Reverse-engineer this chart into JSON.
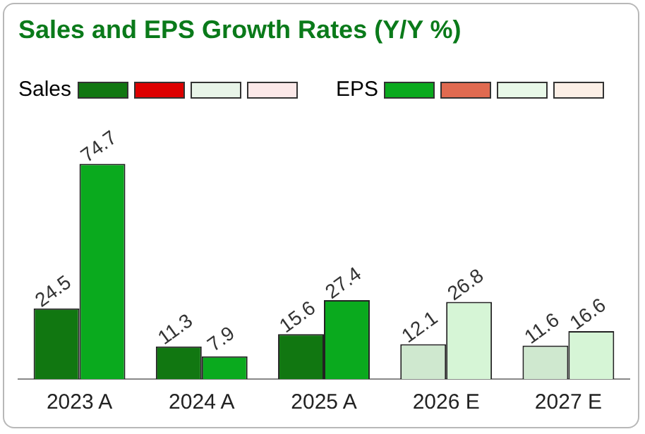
{
  "chart_data": {
    "type": "bar",
    "title": "Sales and EPS Growth Rates (Y/Y %)",
    "categories": [
      "2023 A",
      "2024 A",
      "2025 A",
      "2026 E",
      "2027 E"
    ],
    "series": [
      {
        "name": "Sales",
        "color": "#117711",
        "colors": [
          "#117711",
          "#117711",
          "#117711",
          "#cfe8cf",
          "#cfe8cf"
        ],
        "values": [
          24.5,
          11.3,
          15.6,
          12.1,
          11.6
        ]
      },
      {
        "name": "EPS",
        "color": "#0aaa1e",
        "colors": [
          "#0aaa1e",
          "#0aaa1e",
          "#0aaa1e",
          "#d6f5d6",
          "#d6f5d6"
        ],
        "values": [
          74.7,
          7.9,
          27.4,
          26.8,
          16.6
        ]
      }
    ],
    "data_labels": true,
    "grid": false,
    "legend": "top",
    "tick_labels": "x"
  }
}
